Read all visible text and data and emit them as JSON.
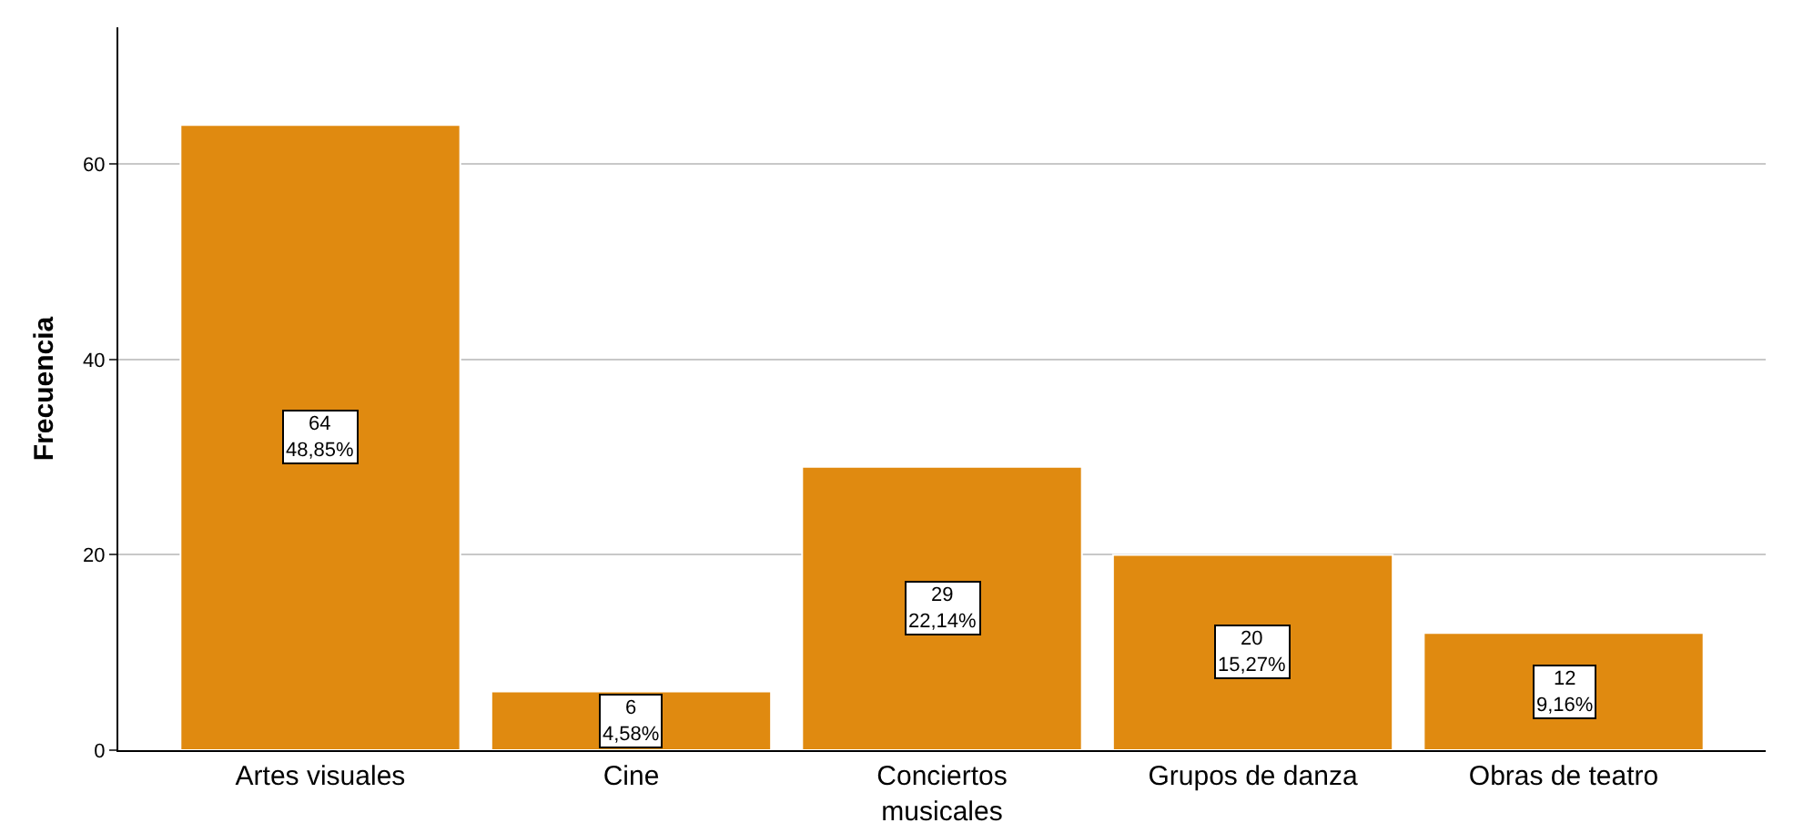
{
  "chart_data": {
    "type": "bar",
    "ylabel": "Frecuencia",
    "categories": [
      "Artes visuales",
      "Cine",
      "Conciertos musicales",
      "Grupos de danza",
      "Obras de teatro"
    ],
    "values": [
      64,
      6,
      29,
      20,
      12
    ],
    "value_labels": [
      "64\n48,85%",
      "6\n4,58%",
      "29\n22,14%",
      "20\n15,27%",
      "12\n9,16%"
    ],
    "color": "#e08a10",
    "ylim": [
      0,
      74
    ],
    "yticks": [
      0,
      20,
      40,
      60
    ],
    "grid": "y",
    "legend": false
  }
}
